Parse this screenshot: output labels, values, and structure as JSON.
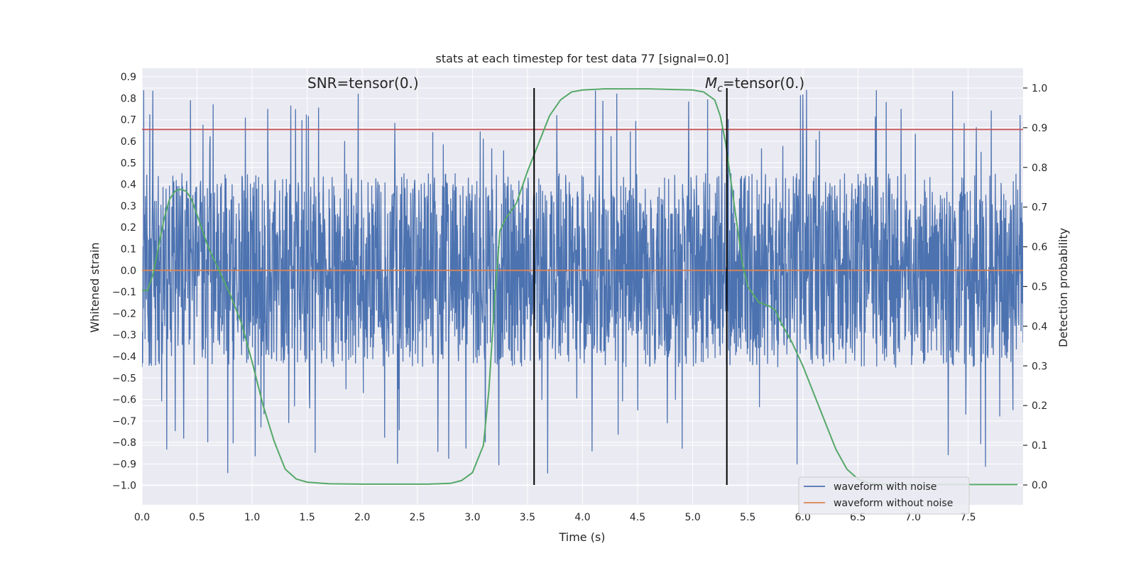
{
  "chart_data": {
    "type": "line",
    "title": "stats at each timestep for test data 77 [signal=0.0]",
    "xlabel": "Time (s)",
    "ylabel": "Whitened strain",
    "y2label": "Detection probability",
    "xlim": [
      0.0,
      8.0
    ],
    "ylim": [
      -1.09,
      0.94
    ],
    "y2lim": [
      -0.05,
      1.05
    ],
    "xticks": [
      "0.0",
      "0.5",
      "1.0",
      "1.5",
      "2.0",
      "2.5",
      "3.0",
      "3.5",
      "4.0",
      "4.5",
      "5.0",
      "5.5",
      "6.0",
      "6.5",
      "7.0",
      "7.5"
    ],
    "yticks": [
      "0.9",
      "0.8",
      "0.7",
      "0.6",
      "0.5",
      "0.4",
      "0.3",
      "0.2",
      "0.1",
      "0.0",
      "−0.1",
      "−0.2",
      "−0.3",
      "−0.4",
      "−0.5",
      "−0.6",
      "−0.7",
      "−0.8",
      "−0.9",
      "−1.0"
    ],
    "y2ticks": [
      "1.0",
      "0.9",
      "0.8",
      "0.7",
      "0.6",
      "0.5",
      "0.4",
      "0.3",
      "0.2",
      "0.1",
      "0.0"
    ],
    "grid": true,
    "legend_position": "lower-right",
    "threshold": 0.655,
    "vlines": [
      3.56,
      5.31
    ],
    "annotations": {
      "snr": "SNR=tensor(0.)",
      "mc_symbol": "M",
      "mc_subscript": "c",
      "mc_value": "=tensor(0.)"
    },
    "series": [
      {
        "name": "waveform with noise",
        "color": "#4c72b0",
        "type": "noise",
        "typical_range": [
          -0.45,
          0.45
        ],
        "extremes": [
          -1.0,
          0.84
        ]
      },
      {
        "name": "waveform without noise",
        "color": "#dd8452",
        "x": [
          0.0,
          8.0
        ],
        "y": [
          0.0,
          0.0
        ]
      },
      {
        "name": "detection probability",
        "color": "#55a868",
        "axis": "right",
        "x": [
          0.0,
          0.05,
          0.1,
          0.15,
          0.2,
          0.25,
          0.3,
          0.35,
          0.4,
          0.45,
          0.5,
          0.55,
          0.6,
          0.7,
          0.8,
          0.9,
          1.0,
          1.1,
          1.2,
          1.3,
          1.4,
          1.5,
          1.7,
          2.0,
          2.3,
          2.6,
          2.8,
          2.9,
          3.0,
          3.1,
          3.15,
          3.2,
          3.25,
          3.3,
          3.4,
          3.5,
          3.6,
          3.7,
          3.8,
          3.9,
          4.0,
          4.2,
          4.6,
          5.0,
          5.1,
          5.2,
          5.25,
          5.3,
          5.35,
          5.4,
          5.45,
          5.5,
          5.6,
          5.7,
          5.75,
          5.8,
          5.9,
          6.0,
          6.1,
          6.2,
          6.3,
          6.4,
          6.5,
          6.6,
          6.7,
          7.0,
          7.5,
          7.95
        ],
        "y": [
          0.49,
          0.49,
          0.53,
          0.6,
          0.67,
          0.72,
          0.74,
          0.745,
          0.74,
          0.72,
          0.68,
          0.64,
          0.6,
          0.54,
          0.48,
          0.41,
          0.31,
          0.2,
          0.11,
          0.04,
          0.015,
          0.007,
          0.003,
          0.002,
          0.002,
          0.002,
          0.004,
          0.011,
          0.031,
          0.1,
          0.24,
          0.46,
          0.64,
          0.67,
          0.71,
          0.79,
          0.86,
          0.93,
          0.97,
          0.99,
          0.995,
          0.998,
          0.998,
          0.995,
          0.99,
          0.97,
          0.93,
          0.86,
          0.76,
          0.66,
          0.56,
          0.5,
          0.46,
          0.45,
          0.44,
          0.41,
          0.36,
          0.3,
          0.23,
          0.16,
          0.09,
          0.04,
          0.015,
          0.005,
          0.002,
          0.001,
          0.001,
          0.001
        ]
      }
    ]
  }
}
